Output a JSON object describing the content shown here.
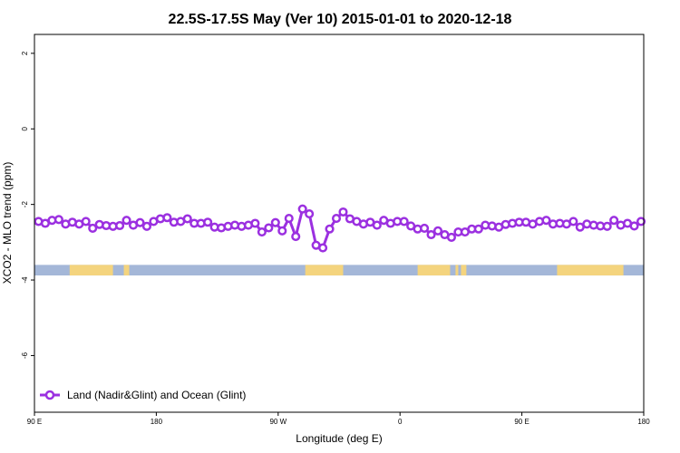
{
  "chart_data": {
    "type": "line",
    "title": "22.5S-17.5S May (Ver 10)   2015-01-01 to 2020-12-18",
    "xlabel": "Longitude (deg E)",
    "ylabel": "XCO2 - MLO trend (ppm)",
    "xlim": [
      90,
      540
    ],
    "ylim": [
      -7.5,
      2.5
    ],
    "xticks": [
      {
        "value": 90,
        "label": "90 E"
      },
      {
        "value": 180,
        "label": "180"
      },
      {
        "value": 270,
        "label": "90 W"
      },
      {
        "value": 360,
        "label": "0"
      },
      {
        "value": 450,
        "label": "90 E"
      },
      {
        "value": 540,
        "label": "180"
      }
    ],
    "yticks": [
      {
        "value": 2,
        "label": "2"
      },
      {
        "value": 0,
        "label": "0"
      },
      {
        "value": -2,
        "label": "-2"
      },
      {
        "value": -4,
        "label": "-4"
      },
      {
        "value": -6,
        "label": "-6"
      }
    ],
    "series": [
      {
        "name": "Land (Nadir&Glint) and Ocean (Glint)",
        "color": "#9b30e0",
        "x": [
          93,
          98,
          103,
          108,
          113,
          118,
          123,
          128,
          133,
          138,
          143,
          148,
          153,
          158,
          163,
          168,
          173,
          178,
          183,
          188,
          193,
          198,
          203,
          208,
          213,
          218,
          223,
          228,
          233,
          238,
          243,
          248,
          253,
          258,
          263,
          268,
          273,
          278,
          283,
          288,
          293,
          298,
          303,
          308,
          313,
          318,
          323,
          328,
          333,
          338,
          343,
          348,
          353,
          358,
          363,
          368,
          373,
          378,
          383,
          388,
          393,
          398,
          403,
          408,
          413,
          418,
          423,
          428,
          433,
          438,
          443,
          448,
          453,
          458,
          463,
          468,
          473,
          478,
          483,
          488,
          493,
          498,
          503,
          508,
          513,
          518,
          523,
          528,
          533,
          538
        ],
        "y": [
          -2.45,
          -2.5,
          -2.42,
          -2.4,
          -2.52,
          -2.47,
          -2.52,
          -2.45,
          -2.63,
          -2.53,
          -2.56,
          -2.58,
          -2.56,
          -2.42,
          -2.55,
          -2.48,
          -2.58,
          -2.45,
          -2.38,
          -2.35,
          -2.47,
          -2.45,
          -2.38,
          -2.5,
          -2.5,
          -2.47,
          -2.6,
          -2.62,
          -2.58,
          -2.55,
          -2.58,
          -2.55,
          -2.5,
          -2.73,
          -2.62,
          -2.48,
          -2.7,
          -2.37,
          -2.85,
          -2.12,
          -2.25,
          -3.08,
          -3.15,
          -2.65,
          -2.37,
          -2.2,
          -2.38,
          -2.45,
          -2.52,
          -2.47,
          -2.55,
          -2.42,
          -2.5,
          -2.45,
          -2.45,
          -2.57,
          -2.65,
          -2.63,
          -2.8,
          -2.7,
          -2.8,
          -2.87,
          -2.73,
          -2.73,
          -2.65,
          -2.65,
          -2.55,
          -2.57,
          -2.6,
          -2.53,
          -2.5,
          -2.47,
          -2.47,
          -2.52,
          -2.45,
          -2.42,
          -2.52,
          -2.5,
          -2.52,
          -2.45,
          -2.6,
          -2.52,
          -2.55,
          -2.57,
          -2.58,
          -2.42,
          -2.55,
          -2.5,
          -2.57,
          -2.45
        ]
      }
    ],
    "land_ocean_strip": {
      "y_range": [
        -3.88,
        -3.6
      ],
      "ocean_color": "#a4b7d8",
      "land_color": "#f4d47e",
      "land_segments": [
        [
          116,
          148
        ],
        [
          156,
          160
        ],
        [
          290,
          318
        ],
        [
          373,
          397
        ],
        [
          401,
          403
        ],
        [
          405,
          409
        ],
        [
          476,
          525
        ]
      ]
    },
    "grid": false,
    "legend": "bottom-left"
  }
}
